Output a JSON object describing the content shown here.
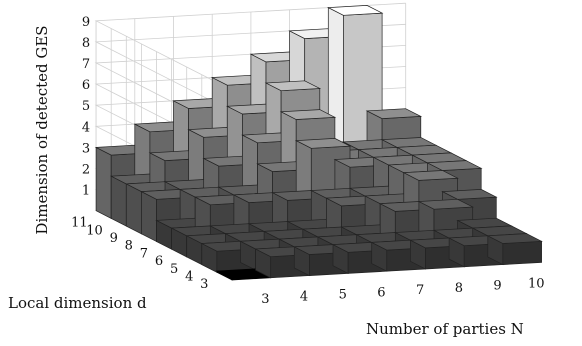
{
  "chart_data": {
    "type": "bar3d",
    "title": "",
    "xlabel": "Number of parties N",
    "ylabel": "Local dimension d",
    "zlabel": "Dimension of detected GES",
    "x_ticks": [
      "3",
      "4",
      "5",
      "6",
      "7",
      "8",
      "9",
      "10"
    ],
    "y_ticks": [
      "3",
      "4",
      "5",
      "6",
      "7",
      "8",
      "9",
      "10",
      "11"
    ],
    "z_ticks": [
      "1",
      "2",
      "3",
      "4",
      "5",
      "6",
      "7",
      "8",
      "9"
    ],
    "zlim": [
      0,
      9
    ],
    "grid": true,
    "x": [
      3,
      4,
      5,
      6,
      7,
      8,
      9,
      10
    ],
    "y": [
      3,
      4,
      5,
      6,
      7,
      8,
      9,
      10,
      11
    ],
    "values": [
      [
        0,
        1,
        1,
        1,
        1,
        1,
        1,
        1
      ],
      [
        1,
        1,
        1,
        1,
        1,
        1,
        1,
        1
      ],
      [
        1,
        1,
        1,
        1,
        1,
        2,
        2,
        1
      ],
      [
        1,
        1,
        1,
        1,
        2,
        2,
        3,
        2
      ],
      [
        1,
        2,
        2,
        2,
        2,
        2,
        3,
        3
      ],
      [
        2,
        2,
        2,
        3,
        4,
        3,
        3,
        3
      ],
      [
        2,
        2,
        3,
        4,
        5,
        3,
        3,
        3
      ],
      [
        2,
        3,
        4,
        5,
        6,
        3,
        3,
        3
      ],
      [
        3,
        4,
        5,
        6,
        7,
        8,
        9,
        4
      ]
    ]
  }
}
